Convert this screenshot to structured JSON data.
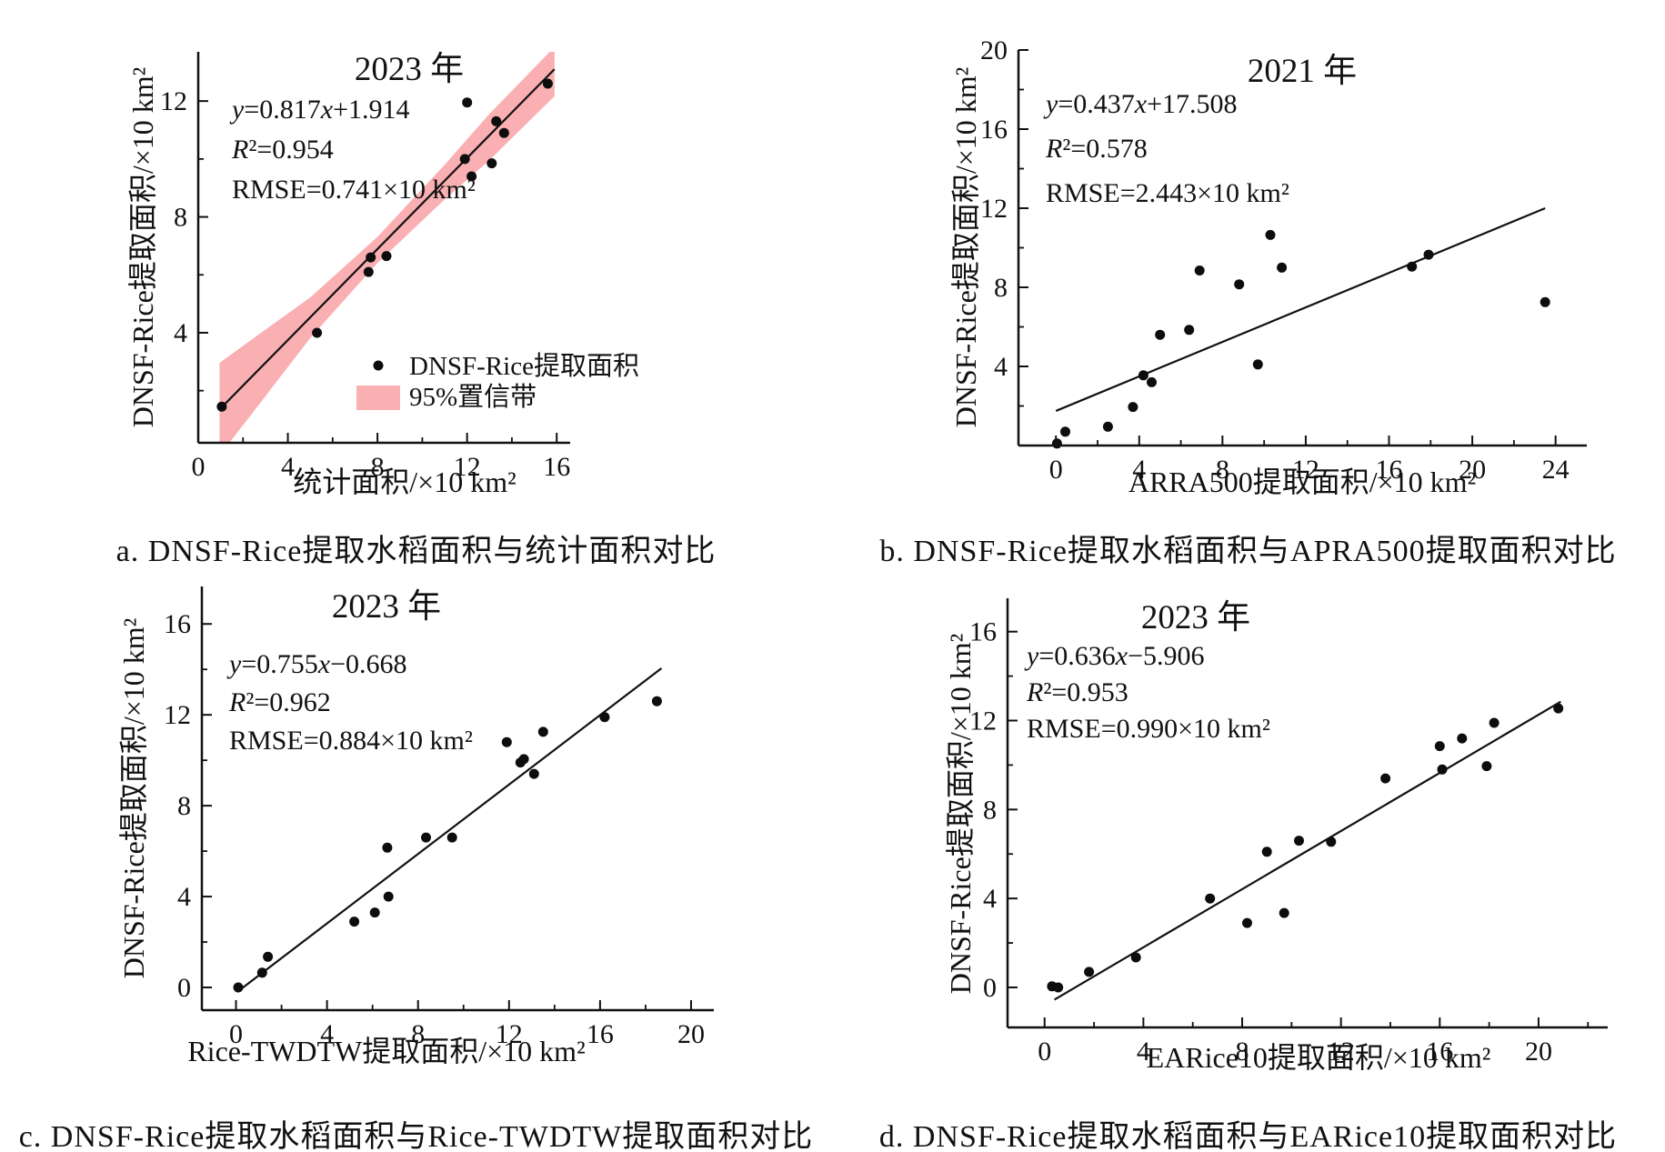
{
  "colors": {
    "ink": "#111111",
    "band_pink": "#FAAFB2",
    "point": "#0d0d0d"
  },
  "chart_data": [
    {
      "id": "a",
      "type": "scatter",
      "title": "2023 年",
      "stats": {
        "eq": [
          [
            "y",
            1
          ],
          [
            "=0.817",
            0
          ],
          [
            "x",
            1
          ],
          [
            "+1.914",
            0
          ]
        ],
        "r2": [
          [
            "R",
            1
          ],
          [
            "²=0.954",
            0
          ]
        ],
        "rmse": "RMSE=0.741×10 km²"
      },
      "xlabel": "统计面积/×10 km²",
      "ylabel": "DNSF-Rice提取面积/×10 km²",
      "caption": "a. DNSF-Rice提取水稻面积与统计面积对比",
      "xlim": [
        0,
        16.6
      ],
      "ylim": [
        0.2,
        13.7
      ],
      "xticks": [
        0,
        4,
        8,
        12,
        16
      ],
      "xminor": [
        2,
        6,
        10,
        14
      ],
      "yticks": [
        4,
        8,
        12
      ],
      "yminor": [
        2,
        6,
        10
      ],
      "points": [
        [
          1.05,
          1.45
        ],
        [
          5.3,
          4.0
        ],
        [
          7.6,
          6.1
        ],
        [
          7.7,
          6.6
        ],
        [
          8.4,
          6.65
        ],
        [
          11.9,
          10.0
        ],
        [
          12.0,
          11.95
        ],
        [
          12.2,
          9.4
        ],
        [
          13.1,
          9.85
        ],
        [
          13.3,
          11.3
        ],
        [
          13.65,
          10.9
        ],
        [
          15.6,
          12.6
        ]
      ],
      "fit_line": {
        "x1": 0.95,
        "y1": 1.35,
        "x2": 15.9,
        "y2": 13.1
      },
      "band": [
        [
          0.95,
          2.96
        ],
        [
          3,
          4.11
        ],
        [
          5,
          5.22
        ],
        [
          8,
          7.31
        ],
        [
          11,
          9.8
        ],
        [
          13,
          11.56
        ],
        [
          15.9,
          13.87
        ],
        [
          15.9,
          12.17
        ],
        [
          13,
          9.96
        ],
        [
          11,
          8.6
        ],
        [
          8,
          6.41
        ],
        [
          5,
          3.82
        ],
        [
          3,
          1.81
        ],
        [
          0.95,
          -0.24
        ]
      ],
      "legend": {
        "point_label": "DNSF-Rice提取面积",
        "band_label": "95%置信带"
      }
    },
    {
      "id": "b",
      "type": "scatter",
      "title": "2021 年",
      "stats": {
        "eq": [
          [
            "y",
            1
          ],
          [
            "=0.437",
            0
          ],
          [
            "x",
            1
          ],
          [
            "+17.508",
            0
          ]
        ],
        "r2": [
          [
            "R",
            1
          ],
          [
            "²=0.578",
            0
          ]
        ],
        "rmse": "RMSE=2.443×10 km²"
      },
      "xlabel": "ARRA500提取面积/×10 km²",
      "ylabel": "DNSF-Rice提取面积/×10 km²",
      "caption": "b. DNSF-Rice提取水稻面积与APRA500提取面积对比",
      "xlim": [
        -1.8,
        25.5
      ],
      "ylim": [
        0,
        20
      ],
      "xticks": [
        0,
        4,
        8,
        12,
        16,
        20,
        24
      ],
      "xminor": [
        2,
        6,
        10,
        14,
        18,
        22
      ],
      "yticks": [
        4,
        8,
        12,
        16,
        20
      ],
      "yminor": [
        2,
        6,
        10,
        14,
        18
      ],
      "points": [
        [
          0.05,
          0.1
        ],
        [
          0.45,
          0.7
        ],
        [
          2.5,
          0.95
        ],
        [
          3.7,
          1.95
        ],
        [
          4.2,
          3.55
        ],
        [
          4.6,
          3.2
        ],
        [
          5.0,
          5.6
        ],
        [
          6.4,
          5.85
        ],
        [
          6.9,
          8.85
        ],
        [
          8.8,
          8.15
        ],
        [
          9.7,
          4.1
        ],
        [
          10.3,
          10.65
        ],
        [
          10.85,
          9.0
        ],
        [
          17.1,
          9.05
        ],
        [
          17.9,
          9.65
        ],
        [
          23.5,
          7.25
        ]
      ],
      "fit_line": {
        "x1": 0.0,
        "y1": 1.75,
        "x2": 23.5,
        "y2": 12.0
      }
    },
    {
      "id": "c",
      "type": "scatter",
      "title": "2023 年",
      "stats": {
        "eq": [
          [
            "y",
            1
          ],
          [
            "=0.755",
            0
          ],
          [
            "x",
            1
          ],
          [
            "−0.668",
            0
          ]
        ],
        "r2": [
          [
            "R",
            1
          ],
          [
            "²=0.962",
            0
          ]
        ],
        "rmse": "RMSE=0.884×10 km²"
      },
      "xlabel": "Rice-TWDTW提取面积/×10 km²",
      "ylabel": "DNSF-Rice提取面积/×10 km²",
      "caption": "c. DNSF-Rice提取水稻面积与Rice-TWDTW提取面积对比",
      "xlim": [
        -1.5,
        21.0
      ],
      "ylim": [
        -1.0,
        17.65
      ],
      "xticks": [
        0,
        4,
        8,
        12,
        16,
        20
      ],
      "xminor": [
        2,
        6,
        10,
        14,
        18
      ],
      "yticks": [
        0,
        4,
        8,
        12,
        16
      ],
      "yminor": [
        2,
        6,
        10,
        14
      ],
      "points": [
        [
          0.1,
          0.0
        ],
        [
          1.15,
          0.65
        ],
        [
          1.4,
          1.35
        ],
        [
          5.2,
          2.9
        ],
        [
          6.1,
          3.3
        ],
        [
          6.7,
          4.0
        ],
        [
          6.65,
          6.15
        ],
        [
          8.35,
          6.6
        ],
        [
          9.5,
          6.6
        ],
        [
          11.9,
          10.8
        ],
        [
          12.5,
          9.9
        ],
        [
          12.65,
          10.05
        ],
        [
          13.1,
          9.4
        ],
        [
          13.5,
          11.25
        ],
        [
          16.2,
          11.9
        ],
        [
          18.5,
          12.6
        ]
      ],
      "fit_line": {
        "x1": 0.05,
        "y1": -0.2,
        "x2": 18.7,
        "y2": 14.05
      }
    },
    {
      "id": "d",
      "type": "scatter",
      "title": "2023 年",
      "stats": {
        "eq": [
          [
            "y",
            1
          ],
          [
            "=0.636",
            0
          ],
          [
            "x",
            1
          ],
          [
            "−5.906",
            0
          ]
        ],
        "r2": [
          [
            "R",
            1
          ],
          [
            "²=0.953",
            0
          ]
        ],
        "rmse": "RMSE=0.990×10 km²"
      },
      "xlabel": "EARice10提取面积/×10 km²",
      "ylabel": "DNSF-Rice提取面积/×10 km²",
      "caption": "d. DNSF-Rice提取水稻面积与EARice10提取面积对比",
      "xlim": [
        -1.5,
        22.8
      ],
      "ylim": [
        -1.8,
        17.5
      ],
      "xticks": [
        0,
        4,
        8,
        12,
        16,
        20
      ],
      "xminor": [
        2,
        6,
        10,
        14,
        18,
        22
      ],
      "yticks": [
        0,
        4,
        8,
        12,
        16
      ],
      "yminor": [
        2,
        6,
        10,
        14
      ],
      "points": [
        [
          0.3,
          0.05
        ],
        [
          0.55,
          0.0
        ],
        [
          1.8,
          0.7
        ],
        [
          3.7,
          1.35
        ],
        [
          6.7,
          4.0
        ],
        [
          8.2,
          2.9
        ],
        [
          9.0,
          6.1
        ],
        [
          9.7,
          3.35
        ],
        [
          10.3,
          6.6
        ],
        [
          11.6,
          6.55
        ],
        [
          13.8,
          9.4
        ],
        [
          16.0,
          10.85
        ],
        [
          16.1,
          9.8
        ],
        [
          16.9,
          11.2
        ],
        [
          17.9,
          9.95
        ],
        [
          18.2,
          11.9
        ],
        [
          20.8,
          12.55
        ]
      ],
      "fit_line": {
        "x1": 0.4,
        "y1": -0.55,
        "x2": 20.9,
        "y2": 12.85
      }
    }
  ]
}
